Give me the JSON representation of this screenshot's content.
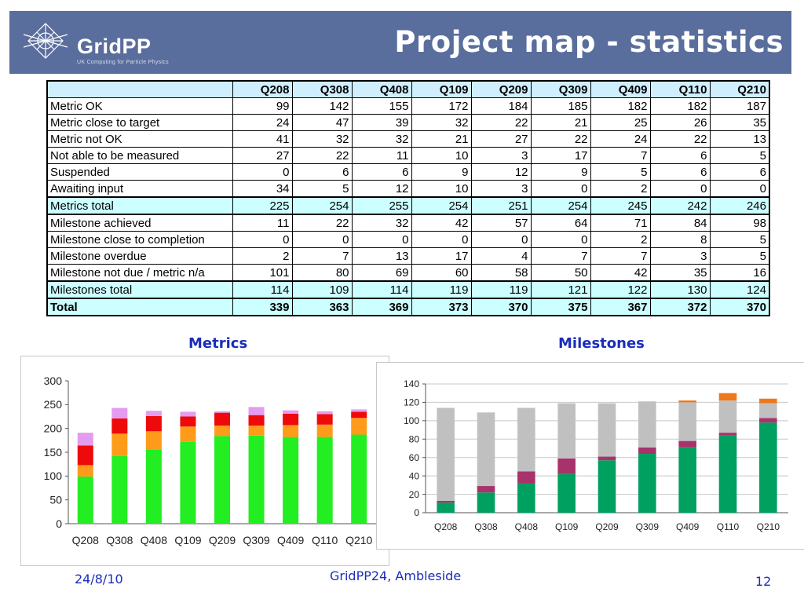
{
  "header": {
    "logo_text": "GridPP",
    "logo_tagline": "UK Computing for Particle Physics",
    "title": "Project map - statistics"
  },
  "table": {
    "columns": [
      "Q208",
      "Q308",
      "Q408",
      "Q109",
      "Q209",
      "Q309",
      "Q409",
      "Q110",
      "Q210"
    ],
    "rows": [
      {
        "label": "Metric OK",
        "values": [
          99,
          142,
          155,
          172,
          184,
          185,
          182,
          182,
          187
        ],
        "style": "normal"
      },
      {
        "label": "Metric close to target",
        "values": [
          24,
          47,
          39,
          32,
          22,
          21,
          25,
          26,
          35
        ],
        "style": "normal"
      },
      {
        "label": "Metric not OK",
        "values": [
          41,
          32,
          32,
          21,
          27,
          22,
          24,
          22,
          13
        ],
        "style": "normal"
      },
      {
        "label": "Not able to be measured",
        "values": [
          27,
          22,
          11,
          10,
          3,
          17,
          7,
          6,
          5
        ],
        "style": "normal"
      },
      {
        "label": "Suspended",
        "values": [
          0,
          6,
          6,
          9,
          12,
          9,
          5,
          6,
          6
        ],
        "style": "normal"
      },
      {
        "label": "Awaiting input",
        "values": [
          34,
          5,
          12,
          10,
          3,
          0,
          2,
          0,
          0
        ],
        "style": "normal"
      },
      {
        "label": "Metrics total",
        "values": [
          225,
          254,
          255,
          254,
          251,
          254,
          245,
          242,
          246
        ],
        "style": "total"
      },
      {
        "label": "Milestone achieved",
        "values": [
          11,
          22,
          32,
          42,
          57,
          64,
          71,
          84,
          98
        ],
        "style": "normal"
      },
      {
        "label": "Milestone close to completion",
        "values": [
          0,
          0,
          0,
          0,
          0,
          0,
          2,
          8,
          5
        ],
        "style": "normal"
      },
      {
        "label": "Milestone overdue",
        "values": [
          2,
          7,
          13,
          17,
          4,
          7,
          7,
          3,
          5
        ],
        "style": "normal"
      },
      {
        "label": "Milestone not due / metric n/a",
        "values": [
          101,
          80,
          69,
          60,
          58,
          50,
          42,
          35,
          16
        ],
        "style": "normal"
      },
      {
        "label": "Milestones total",
        "values": [
          114,
          109,
          114,
          119,
          119,
          121,
          122,
          130,
          124
        ],
        "style": "total"
      },
      {
        "label": "Total",
        "values": [
          339,
          363,
          369,
          373,
          370,
          375,
          367,
          372,
          370
        ],
        "style": "grand"
      }
    ]
  },
  "metrics_title": "Metrics",
  "milestones_title": "Milestones",
  "chart_data": [
    {
      "type": "bar",
      "stacked": true,
      "categories": [
        "Q208",
        "Q308",
        "Q408",
        "Q109",
        "Q209",
        "Q309",
        "Q409",
        "Q110",
        "Q210"
      ],
      "ylim": [
        0,
        300
      ],
      "yticks": [
        0,
        50,
        100,
        150,
        200,
        250,
        300
      ],
      "grid": false,
      "series": [
        {
          "values": [
            99,
            142,
            155,
            172,
            184,
            185,
            182,
            182,
            187
          ],
          "color": "#22ee22"
        },
        {
          "values": [
            24,
            47,
            39,
            32,
            22,
            21,
            25,
            26,
            35
          ],
          "color": "#ff9b1a"
        },
        {
          "values": [
            41,
            32,
            32,
            21,
            27,
            22,
            24,
            22,
            13
          ],
          "color": "#ee0a0a"
        },
        {
          "values": [
            27,
            22,
            11,
            10,
            3,
            17,
            7,
            6,
            5
          ],
          "color": "#e49cf0"
        }
      ]
    },
    {
      "type": "bar",
      "stacked": true,
      "categories": [
        "Q208",
        "Q308",
        "Q408",
        "Q109",
        "Q209",
        "Q309",
        "Q409",
        "Q110",
        "Q210"
      ],
      "ylim": [
        0,
        140
      ],
      "yticks": [
        0,
        20,
        40,
        60,
        80,
        100,
        120,
        140
      ],
      "grid": true,
      "series": [
        {
          "values": [
            11,
            22,
            32,
            42,
            57,
            64,
            71,
            84,
            98
          ],
          "color": "#00a060"
        },
        {
          "values": [
            2,
            7,
            13,
            17,
            4,
            7,
            7,
            3,
            5
          ],
          "color": "#a8336b"
        },
        {
          "values": [
            101,
            80,
            69,
            60,
            58,
            50,
            42,
            35,
            16
          ],
          "color": "#c0c0c0"
        },
        {
          "values": [
            0,
            0,
            0,
            0,
            0,
            0,
            2,
            8,
            5
          ],
          "color": "#f07818"
        }
      ]
    }
  ],
  "footer": {
    "date": "24/8/10",
    "event": "GridPP24, Ambleside",
    "page": "12"
  }
}
